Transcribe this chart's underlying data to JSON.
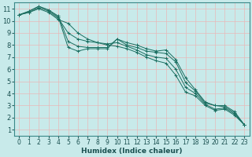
{
  "xlabel": "Humidex (Indice chaleur)",
  "ylabel": "",
  "background_color": "#c8eaea",
  "grid_color_h": "#e8c8c8",
  "grid_color_v": "#e8c8c8",
  "line_color": "#1a6e60",
  "xlim": [
    -0.5,
    23.5
  ],
  "ylim": [
    0.5,
    11.5
  ],
  "xticks": [
    0,
    1,
    2,
    3,
    4,
    5,
    6,
    7,
    8,
    9,
    10,
    11,
    12,
    13,
    14,
    15,
    16,
    17,
    18,
    19,
    20,
    21,
    22,
    23
  ],
  "yticks": [
    1,
    2,
    3,
    4,
    5,
    6,
    7,
    8,
    9,
    10,
    11
  ],
  "series": [
    [
      10.5,
      10.8,
      11.2,
      10.9,
      10.3,
      7.8,
      7.5,
      7.7,
      7.7,
      7.7,
      8.5,
      8.2,
      8.0,
      7.7,
      7.5,
      7.6,
      6.8,
      5.3,
      4.3,
      3.3,
      3.0,
      3.0,
      2.5,
      1.4
    ],
    [
      10.5,
      10.8,
      11.2,
      10.9,
      10.4,
      8.3,
      7.9,
      7.8,
      7.8,
      7.8,
      8.5,
      8.0,
      7.8,
      7.5,
      7.4,
      7.3,
      6.6,
      4.9,
      4.2,
      3.2,
      3.0,
      2.9,
      2.4,
      1.4
    ],
    [
      10.5,
      10.7,
      11.1,
      10.8,
      10.2,
      9.0,
      8.5,
      8.3,
      8.2,
      8.1,
      8.2,
      7.9,
      7.6,
      7.2,
      7.0,
      6.9,
      6.0,
      4.5,
      4.0,
      3.1,
      2.7,
      2.8,
      2.3,
      1.4
    ],
    [
      10.5,
      10.7,
      11.0,
      10.7,
      10.1,
      9.8,
      9.0,
      8.5,
      8.2,
      8.0,
      7.9,
      7.7,
      7.4,
      7.0,
      6.7,
      6.5,
      5.5,
      4.1,
      3.8,
      3.0,
      2.6,
      2.7,
      2.2,
      1.4
    ]
  ]
}
